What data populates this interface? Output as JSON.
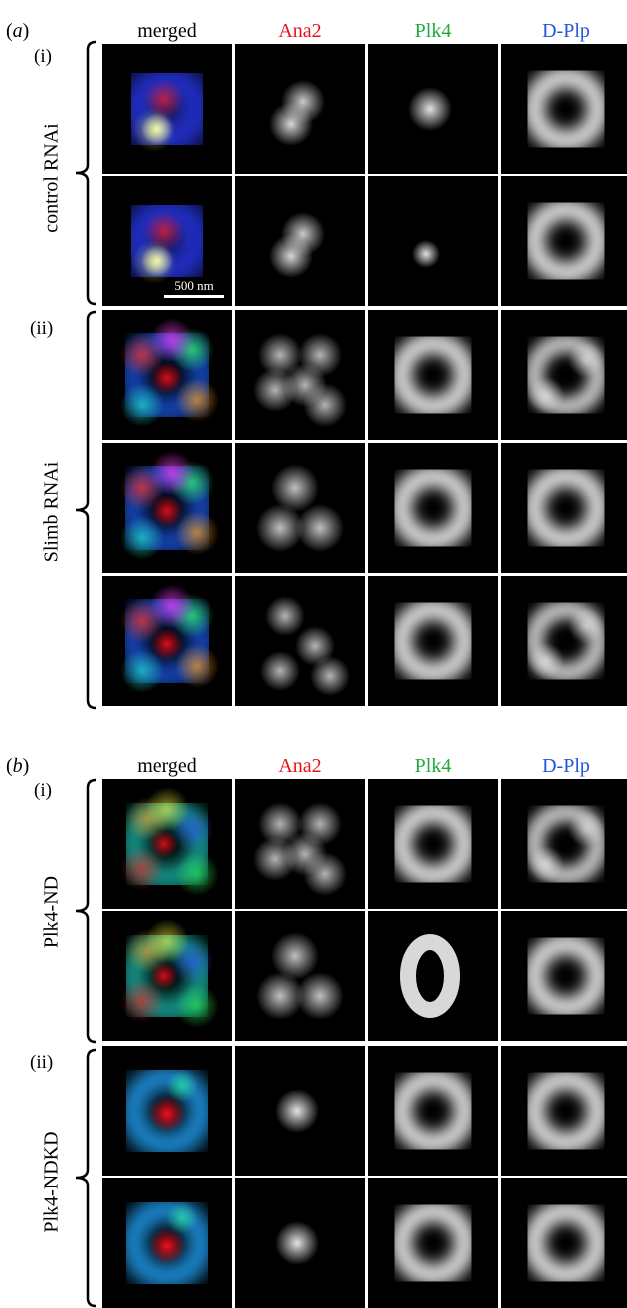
{
  "panels": [
    {
      "label": "a",
      "columns": [
        "merged",
        "Ana2",
        "Plk4",
        "D-Plp"
      ],
      "column_colors": [
        "#000000",
        "#e8141c",
        "#1faa3c",
        "#2255dd"
      ],
      "groups": [
        {
          "sub": "(i)",
          "name": "control RNAi",
          "rows": 2
        },
        {
          "sub": "(ii)",
          "name": "Slimb RNAi",
          "rows": 3
        }
      ],
      "scale_bar": "500 nm"
    },
    {
      "label": "b",
      "columns": [
        "merged",
        "Ana2",
        "Plk4",
        "D-Plp"
      ],
      "column_colors": [
        "#000000",
        "#e8141c",
        "#1faa3c",
        "#2255dd"
      ],
      "groups": [
        {
          "sub": "(i)",
          "name": "Plk4-ND",
          "rows": 2
        },
        {
          "sub": "(ii)",
          "name": "Plk4-NDKD",
          "rows": 2
        }
      ]
    }
  ]
}
